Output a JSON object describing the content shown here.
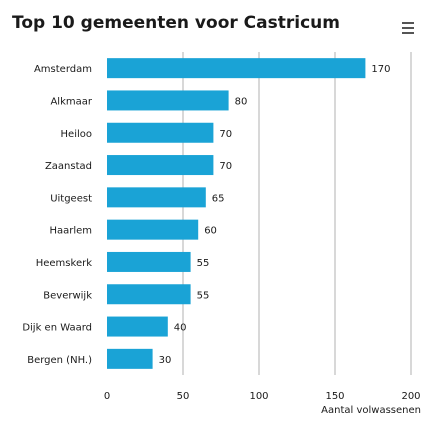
{
  "title": "Top 10 gemeenten voor Castricum",
  "menu_icon": "hamburger-menu-icon",
  "colors": {
    "bar": "#1aa3d6",
    "grid": "#b0b0b0",
    "text": "#1a1a1a"
  },
  "chart_data": {
    "type": "bar",
    "orientation": "horizontal",
    "title": "Top 10 gemeenten voor Castricum",
    "categories": [
      "Amsterdam",
      "Alkmaar",
      "Heiloo",
      "Zaanstad",
      "Uitgeest",
      "Haarlem",
      "Heemskerk",
      "Beverwijk",
      "Dijk en Waard",
      "Bergen (NH.)"
    ],
    "values": [
      170,
      80,
      70,
      70,
      65,
      60,
      55,
      55,
      40,
      30
    ],
    "xlabel": "Aantal volwassenen",
    "ylabel": "",
    "xlim": [
      0,
      200
    ],
    "xticks": [
      0,
      50,
      100,
      150,
      200
    ],
    "grid": true,
    "data_labels": true
  }
}
